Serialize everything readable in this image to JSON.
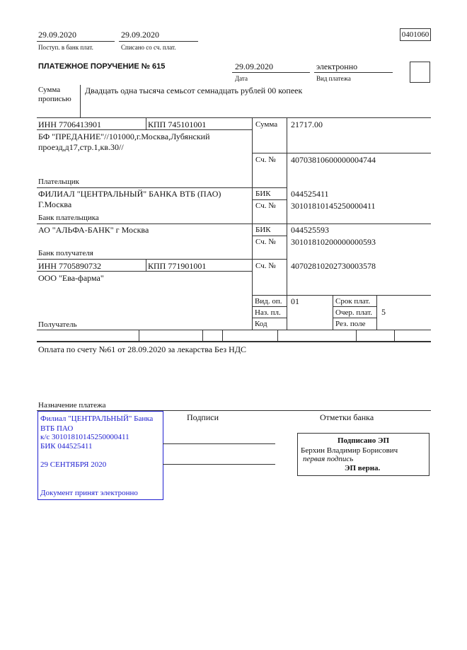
{
  "header": {
    "received_date": "29.09.2020",
    "received_label": "Поступ. в банк плат.",
    "debited_date": "29.09.2020",
    "debited_label": "Списано со сч. плат.",
    "form_code": "0401060"
  },
  "title": "ПЛАТЕЖНОЕ ПОРУЧЕНИЕ № 615",
  "date": "29.09.2020",
  "date_label": "Дата",
  "payment_type": "электронно",
  "payment_type_label": "Вид платежа",
  "amount_words_label_1": "Сумма",
  "amount_words_label_2": "прописью",
  "amount_words": "Двадцать одна тысяча семьсот семнадцать рублей 00 копеек",
  "payer": {
    "inn": "ИНН 7706413901",
    "kpp": "КПП 745101001",
    "name_1": "БФ \"ПРЕДАНИЕ\"//101000,г.Москва,Лубянский",
    "name_2": "проезд,д17,стр.1,кв.30//",
    "label": "Плательщик",
    "amount_label": "Сумма",
    "amount": "21717.00",
    "account_label": "Сч. №",
    "account": "40703810600000004744"
  },
  "payer_bank": {
    "name_1": "ФИЛИАЛ \"ЦЕНТРАЛЬНЫЙ\" БАНКА ВТБ (ПАО)",
    "name_2": "Г.Москва",
    "label": "Банк плательщика",
    "bik_label": "БИК",
    "bik": "044525411",
    "account_label": "Сч. №",
    "account": "30101810145250000411"
  },
  "payee_bank": {
    "name": "АО \"АЛЬФА-БАНК\" г Москва",
    "label": "Банк получателя",
    "bik_label": "БИК",
    "bik": "044525593",
    "account_label": "Сч. №",
    "account": "30101810200000000593"
  },
  "payee": {
    "inn": "ИНН 7705890732",
    "kpp": "КПП 771901001",
    "name": "ООО \"Ева-фарма\"",
    "label": "Получатель",
    "account_label": "Сч. №",
    "account": "40702810202730003578"
  },
  "codes": {
    "op_type_label": "Вид. оп.",
    "op_type": "01",
    "purpose_code_label": "Наз. пл.",
    "code_label": "Код",
    "due_label": "Срок плат.",
    "priority_label": "Очер. плат.",
    "priority": "5",
    "reserve_label": "Рез. поле"
  },
  "purpose": "Оплата по счету №61 от 28.09.2020 за лекарства Без НДС",
  "purpose_label": "Назначение платежа",
  "signatures_label": "Подписи",
  "bank_marks_label": "Отметки банка",
  "bank_stamp": {
    "line1": "Филиал \"ЦЕНТРАЛЬНЫЙ\" Банка",
    "line2": "ВТБ ПАО",
    "line3": "к/с 30101810145250000411",
    "line4": "БИК 044525411",
    "date": "29 СЕНТЯБРЯ 2020",
    "status": "Документ принят электронно",
    "color": "#2020d0"
  },
  "e_signature": {
    "title": "Подписано ЭП",
    "signer": "Берхин Владимир Борисович",
    "role": "первая подпись",
    "verdict": "ЭП верна."
  }
}
